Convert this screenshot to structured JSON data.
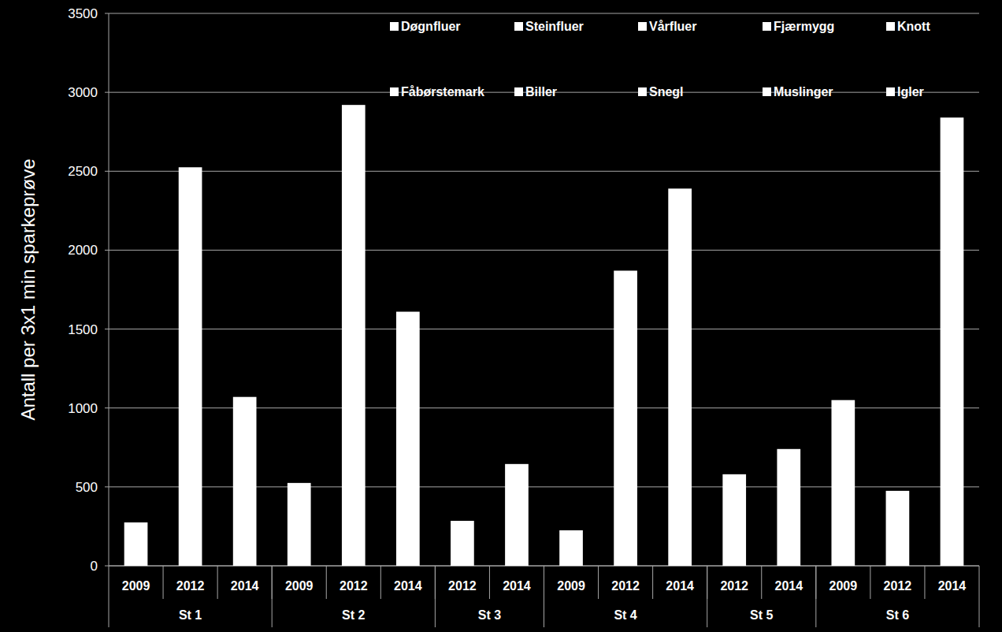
{
  "chart_data": {
    "type": "bar",
    "y_label": "Antall per 3x1 min sparkeprøve",
    "categories": [
      "2009",
      "2012",
      "2014",
      "2009",
      "2012",
      "2014",
      "2012",
      "2014",
      "2009",
      "2012",
      "2014",
      "2012",
      "2014",
      "2009",
      "2012",
      "2014"
    ],
    "groups": [
      {
        "name": "St 1",
        "size": 3
      },
      {
        "name": "St 2",
        "size": 3
      },
      {
        "name": "St 3",
        "size": 2
      },
      {
        "name": "St 4",
        "size": 3
      },
      {
        "name": "St 5",
        "size": 2
      },
      {
        "name": "St 6",
        "size": 3
      }
    ],
    "values": [
      275,
      2525,
      1070,
      525,
      2920,
      1610,
      285,
      645,
      225,
      1870,
      2390,
      580,
      740,
      1050,
      475,
      2840
    ],
    "color": "#ffffff",
    "series": [
      {
        "name": "Døgnfluer",
        "color": "#ffffff"
      },
      {
        "name": "Steinfluer",
        "color": "#ffffff"
      },
      {
        "name": "Vårfluer",
        "color": "#ffffff"
      },
      {
        "name": "Fjærmygg",
        "color": "#ffffff"
      },
      {
        "name": "Knott",
        "color": "#ffffff"
      },
      {
        "name": "Fåbørstemark",
        "color": "#ffffff"
      },
      {
        "name": "Biller",
        "color": "#ffffff"
      },
      {
        "name": "Snegl",
        "color": "#ffffff"
      },
      {
        "name": "Muslinger",
        "color": "#ffffff"
      },
      {
        "name": "Igler",
        "color": "#ffffff"
      }
    ],
    "stacked": true,
    "legend": "top",
    "ylim": [
      0,
      3500
    ],
    "yticks": [
      0,
      500,
      1000,
      1500,
      2000,
      2500,
      3000,
      3500
    ],
    "grid": true
  }
}
